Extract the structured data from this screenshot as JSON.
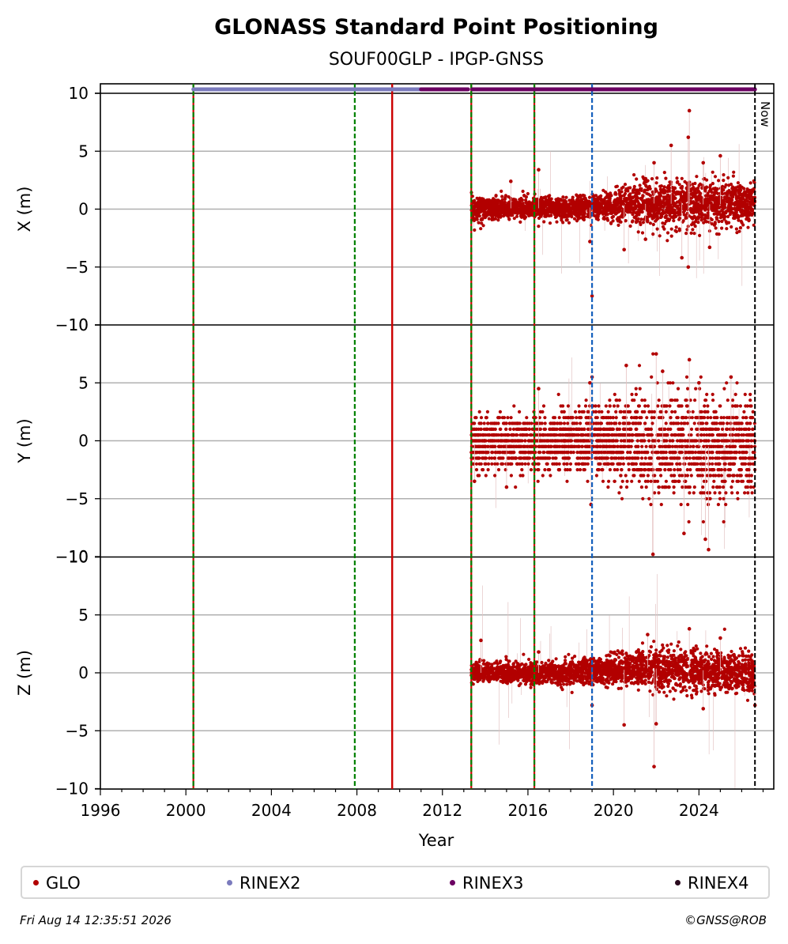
{
  "chart_data": {
    "type": "scatter",
    "title": "GLONASS Standard Point Positioning",
    "subtitle": "SOUF00GLP - IPGP-GNSS",
    "xlabel": "Year",
    "xlim": [
      1996,
      2027.5
    ],
    "xticks": [
      "1996",
      "2000",
      "2004",
      "2008",
      "2012",
      "2016",
      "2020",
      "2024"
    ],
    "yticks": [
      "10",
      "5",
      "0",
      "−5",
      "−10"
    ],
    "grid": "horizontal",
    "now_label": "Now",
    "now_year": 2026.62,
    "events": [
      {
        "year": 2000.35,
        "style": "red-green"
      },
      {
        "year": 2007.9,
        "style": "green-dashed"
      },
      {
        "year": 2009.65,
        "style": "red-solid"
      },
      {
        "year": 2013.35,
        "style": "red-green"
      },
      {
        "year": 2016.3,
        "style": "red-green"
      },
      {
        "year": 2019.0,
        "style": "blue-dashed"
      }
    ],
    "rinex_bar": [
      {
        "name": "RINEX2",
        "from": 2000.35,
        "to": 2011.0
      },
      {
        "name": "RINEX3",
        "from": 2011.0,
        "to": 2013.2
      },
      {
        "name": "RINEX3",
        "from": 2013.4,
        "to": 2026.62
      }
    ],
    "data_start": 2013.35,
    "data_end": 2026.62,
    "panels": [
      {
        "ylabel": "X (m)",
        "ylim": [
          -10,
          10
        ],
        "trend": [
          [
            2013.35,
            0.0
          ],
          [
            2016.0,
            0.1
          ],
          [
            2018.0,
            0.0
          ],
          [
            2020.0,
            0.3
          ],
          [
            2022.0,
            0.5
          ],
          [
            2024.0,
            0.4
          ],
          [
            2026.62,
            0.5
          ]
        ],
        "spread": [
          [
            2013.35,
            0.7
          ],
          [
            2016.0,
            0.6
          ],
          [
            2019.5,
            0.7
          ],
          [
            2021.0,
            1.1
          ],
          [
            2023.5,
            1.4
          ],
          [
            2026.62,
            1.2
          ]
        ],
        "outliers": [
          [
            2019.0,
            -7.5
          ],
          [
            2023.55,
            8.5
          ],
          [
            2023.5,
            -5.0
          ],
          [
            2022.7,
            5.5
          ],
          [
            2023.5,
            6.2
          ],
          [
            2018.9,
            -2.8
          ],
          [
            2020.5,
            -3.5
          ],
          [
            2024.2,
            4.0
          ],
          [
            2025.0,
            4.6
          ],
          [
            2021.9,
            4.0
          ],
          [
            2024.5,
            -3.3
          ],
          [
            2023.2,
            -4.2
          ],
          [
            2015.2,
            2.4
          ],
          [
            2021.5,
            -2.6
          ],
          [
            2016.5,
            3.4
          ]
        ]
      },
      {
        "ylabel": "Y (m)",
        "ylim": [
          -10,
          10
        ],
        "trend": [
          [
            2013.35,
            -0.3
          ],
          [
            2016.0,
            -0.2
          ],
          [
            2019.0,
            0.0
          ],
          [
            2021.0,
            -0.2
          ],
          [
            2023.0,
            -0.5
          ],
          [
            2025.0,
            -0.5
          ],
          [
            2026.62,
            -0.2
          ]
        ],
        "spread": [
          [
            2013.35,
            1.5
          ],
          [
            2016.0,
            1.6
          ],
          [
            2019.0,
            1.7
          ],
          [
            2021.0,
            2.5
          ],
          [
            2023.0,
            3.0
          ],
          [
            2025.0,
            2.8
          ],
          [
            2026.62,
            2.6
          ]
        ],
        "outliers": [
          [
            2022.0,
            7.5
          ],
          [
            2023.55,
            7.0
          ],
          [
            2021.85,
            -9.8
          ],
          [
            2024.45,
            -9.4
          ],
          [
            2024.3,
            -8.5
          ],
          [
            2023.3,
            -8.0
          ],
          [
            2019.0,
            5.5
          ],
          [
            2018.9,
            5.0
          ],
          [
            2020.6,
            6.5
          ],
          [
            2022.3,
            6.0
          ],
          [
            2016.5,
            4.5
          ],
          [
            2018.95,
            -5.5
          ],
          [
            2015.0,
            -4.0
          ],
          [
            2013.5,
            -3.5
          ],
          [
            2025.5,
            5.5
          ],
          [
            2024.0,
            5.0
          ]
        ]
      },
      {
        "ylabel": "Z (m)",
        "ylim": [
          -10,
          10
        ],
        "trend": [
          [
            2013.35,
            0.0
          ],
          [
            2016.0,
            0.0
          ],
          [
            2018.0,
            0.0
          ],
          [
            2020.0,
            0.2
          ],
          [
            2021.5,
            0.4
          ],
          [
            2023.0,
            0.3
          ],
          [
            2024.5,
            0.2
          ],
          [
            2026.62,
            -0.1
          ]
        ],
        "spread": [
          [
            2013.35,
            0.5
          ],
          [
            2016.0,
            0.6
          ],
          [
            2019.0,
            0.7
          ],
          [
            2021.0,
            1.0
          ],
          [
            2023.0,
            1.2
          ],
          [
            2026.62,
            1.1
          ]
        ],
        "outliers": [
          [
            2021.9,
            -8.1
          ],
          [
            2020.5,
            -4.5
          ],
          [
            2022.0,
            -4.4
          ],
          [
            2023.55,
            3.8
          ],
          [
            2013.8,
            2.8
          ],
          [
            2019.0,
            -2.8
          ],
          [
            2024.2,
            -3.1
          ],
          [
            2021.6,
            3.3
          ],
          [
            2025.0,
            3.0
          ],
          [
            2016.5,
            1.8
          ],
          [
            2026.62,
            -2.8
          ]
        ]
      }
    ]
  },
  "legend": [
    {
      "label": "GLO",
      "color": "#b20000"
    },
    {
      "label": "RINEX2",
      "color": "#7b7bbd"
    },
    {
      "label": "RINEX3",
      "color": "#6b0062"
    },
    {
      "label": "RINEX4",
      "color": "#2a0a1e"
    }
  ],
  "colors": {
    "glo": "#b20000",
    "rinex2": "#7b7bbd",
    "rinex3": "#6b0062",
    "grid": "#b0b0b0",
    "event_red": "#cc0000",
    "event_green": "#008000",
    "event_blue": "#1560bd"
  },
  "footer": {
    "timestamp": "Fri Aug 14 12:35:51 2026",
    "credit": "©GNSS@ROB"
  }
}
